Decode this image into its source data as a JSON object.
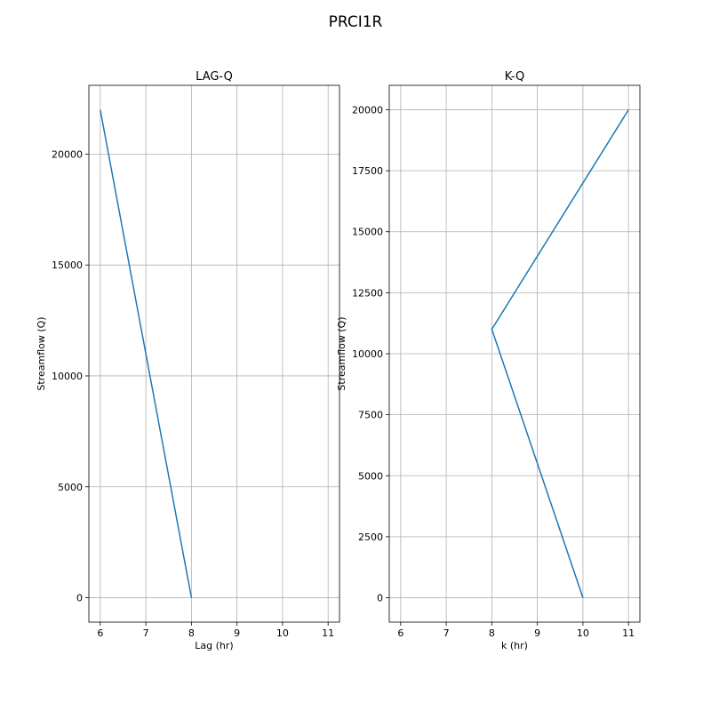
{
  "figure": {
    "title": "PRCI1R"
  },
  "colors": {
    "line": "#1f77b4",
    "grid": "#b0b0b0",
    "axis": "#000000"
  },
  "chart_data": [
    {
      "type": "line",
      "title": "LAG-Q",
      "xlabel": "Lag (hr)",
      "ylabel": "Streamflow (Q)",
      "xlim": [
        5.75,
        11.25
      ],
      "ylim": [
        -1100,
        23100
      ],
      "xticks": [
        6,
        7,
        8,
        9,
        10,
        11
      ],
      "yticks": [
        0,
        5000,
        10000,
        15000,
        20000
      ],
      "grid": true,
      "series": [
        {
          "x": [
            8,
            6
          ],
          "y": [
            0,
            22000
          ]
        }
      ]
    },
    {
      "type": "line",
      "title": "K-Q",
      "xlabel": "k (hr)",
      "ylabel": "Streamflow (Q)",
      "xlim": [
        5.75,
        11.25
      ],
      "ylim": [
        -1000,
        21000
      ],
      "xticks": [
        6,
        7,
        8,
        9,
        10,
        11
      ],
      "yticks": [
        0,
        2500,
        5000,
        7500,
        10000,
        12500,
        15000,
        17500,
        20000
      ],
      "grid": true,
      "series": [
        {
          "x": [
            10,
            8,
            11
          ],
          "y": [
            0,
            11000,
            20000
          ]
        }
      ]
    }
  ]
}
